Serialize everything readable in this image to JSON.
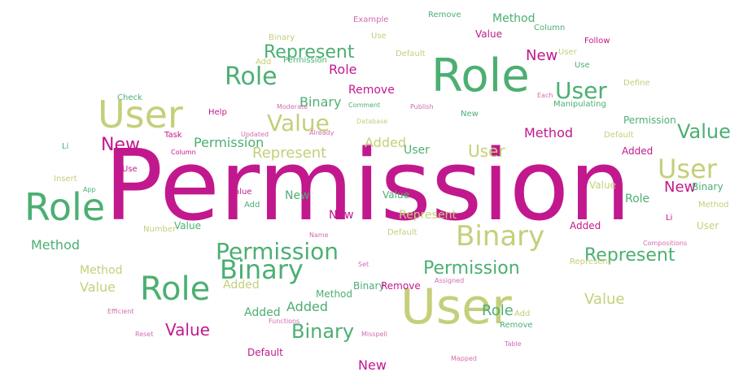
{
  "colors": {
    "magenta": "#c2188e",
    "green": "#4caf72",
    "olive": "#c5cf7a",
    "pink": "#d46bb0"
  },
  "words": [
    {
      "text": "Permission",
      "color": "magenta"
    },
    {
      "text": "User",
      "color": "olive"
    },
    {
      "text": "Role",
      "color": "green"
    },
    {
      "text": "Role",
      "color": "green"
    },
    {
      "text": "User",
      "color": "olive"
    },
    {
      "text": "Role",
      "color": "green"
    },
    {
      "text": "Binary",
      "color": "olive"
    },
    {
      "text": "Permission",
      "color": "green"
    },
    {
      "text": "Binary",
      "color": "green"
    },
    {
      "text": "User",
      "color": "olive"
    },
    {
      "text": "User",
      "color": "green"
    },
    {
      "text": "Role",
      "color": "green"
    },
    {
      "text": "Value",
      "color": "olive"
    },
    {
      "text": "Value",
      "color": "green"
    },
    {
      "text": "Represent",
      "color": "green"
    },
    {
      "text": "Permission",
      "color": "green"
    },
    {
      "text": "Represent",
      "color": "green"
    },
    {
      "text": "Binary",
      "color": "green"
    },
    {
      "text": "New",
      "color": "magenta"
    },
    {
      "text": "New",
      "color": "magenta"
    },
    {
      "text": "Value",
      "color": "magenta"
    },
    {
      "text": "User",
      "color": "olive"
    },
    {
      "text": "Role",
      "color": "green"
    },
    {
      "text": "Permission",
      "color": "green"
    },
    {
      "text": "Represent",
      "color": "olive"
    },
    {
      "text": "Value",
      "color": "olive"
    },
    {
      "text": "Method",
      "color": "green"
    },
    {
      "text": "Binary",
      "color": "green"
    },
    {
      "text": "Method",
      "color": "magenta"
    },
    {
      "text": "New",
      "color": "magenta"
    },
    {
      "text": "Added",
      "color": "olive"
    },
    {
      "text": "Added",
      "color": "green"
    },
    {
      "text": "Remove",
      "color": "magenta"
    },
    {
      "text": "Role",
      "color": "magenta"
    },
    {
      "text": "Method",
      "color": "green"
    },
    {
      "text": "Represent",
      "color": "olive"
    },
    {
      "text": "Value",
      "color": "olive"
    },
    {
      "text": "Value",
      "color": "magenta"
    },
    {
      "text": "Role",
      "color": "green"
    },
    {
      "text": "User",
      "color": "green"
    },
    {
      "text": "Binary",
      "color": "green"
    },
    {
      "text": "New",
      "color": "green"
    },
    {
      "text": "New",
      "color": "magenta"
    },
    {
      "text": "Method",
      "color": "olive"
    },
    {
      "text": "Value",
      "color": "olive"
    },
    {
      "text": "Added",
      "color": "olive"
    },
    {
      "text": "Added",
      "color": "green"
    },
    {
      "text": "Permission",
      "color": "green"
    },
    {
      "text": "Binary",
      "color": "green"
    },
    {
      "text": "Value",
      "color": "green"
    },
    {
      "text": "New",
      "color": "magenta"
    },
    {
      "text": "Permission",
      "color": "green"
    },
    {
      "text": "User",
      "color": "olive"
    },
    {
      "text": "Represent",
      "color": "olive"
    },
    {
      "text": "Method",
      "color": "olive"
    },
    {
      "text": "Default",
      "color": "magenta"
    },
    {
      "text": "Default",
      "color": "olive"
    },
    {
      "text": "Added",
      "color": "magenta"
    },
    {
      "text": "Remove",
      "color": "magenta"
    },
    {
      "text": "Added",
      "color": "magenta"
    },
    {
      "text": "Default",
      "color": "olive"
    },
    {
      "text": "Binary",
      "color": "olive"
    },
    {
      "text": "Value",
      "color": "green"
    },
    {
      "text": "Default",
      "color": "olive"
    },
    {
      "text": "User",
      "color": "olive"
    },
    {
      "text": "New",
      "color": "green"
    },
    {
      "text": "Example",
      "color": "pink"
    },
    {
      "text": "Remove",
      "color": "green"
    },
    {
      "text": "Method",
      "color": "green"
    },
    {
      "text": "Value",
      "color": "magenta"
    },
    {
      "text": "Column",
      "color": "green"
    },
    {
      "text": "Remove",
      "color": "green"
    },
    {
      "text": "Use",
      "color": "olive"
    },
    {
      "text": "Li",
      "color": "green"
    },
    {
      "text": "Li",
      "color": "magenta"
    },
    {
      "text": "Use",
      "color": "magenta"
    },
    {
      "text": "Use",
      "color": "green"
    },
    {
      "text": "Add",
      "color": "olive"
    },
    {
      "text": "Add",
      "color": "green"
    },
    {
      "text": "Add",
      "color": "olive"
    },
    {
      "text": "Insert",
      "color": "olive"
    },
    {
      "text": "Task",
      "color": "magenta"
    },
    {
      "text": "Check",
      "color": "green"
    },
    {
      "text": "Help",
      "color": "magenta"
    },
    {
      "text": "Column",
      "color": "magenta"
    },
    {
      "text": "Number",
      "color": "olive"
    },
    {
      "text": "Follow",
      "color": "magenta"
    },
    {
      "text": "Define",
      "color": "olive"
    },
    {
      "text": "Manipulating",
      "color": "green"
    },
    {
      "text": "Comment",
      "color": "green"
    },
    {
      "text": "Database",
      "color": "olive"
    },
    {
      "text": "Moderate",
      "color": "pink"
    },
    {
      "text": "Already",
      "color": "pink"
    },
    {
      "text": "Updated",
      "color": "pink"
    },
    {
      "text": "App",
      "color": "green"
    },
    {
      "text": "Assigned",
      "color": "pink"
    },
    {
      "text": "Mapped",
      "color": "pink"
    },
    {
      "text": "Functions",
      "color": "pink"
    },
    {
      "text": "Compositions",
      "color": "pink"
    },
    {
      "text": "Each",
      "color": "pink"
    },
    {
      "text": "Publish",
      "color": "pink"
    },
    {
      "text": "Name",
      "color": "pink"
    },
    {
      "text": "Set",
      "color": "pink"
    },
    {
      "text": "Reset",
      "color": "pink"
    },
    {
      "text": "Table",
      "color": "pink"
    },
    {
      "text": "Efficient",
      "color": "pink"
    },
    {
      "text": "Misspell",
      "color": "pink"
    }
  ]
}
